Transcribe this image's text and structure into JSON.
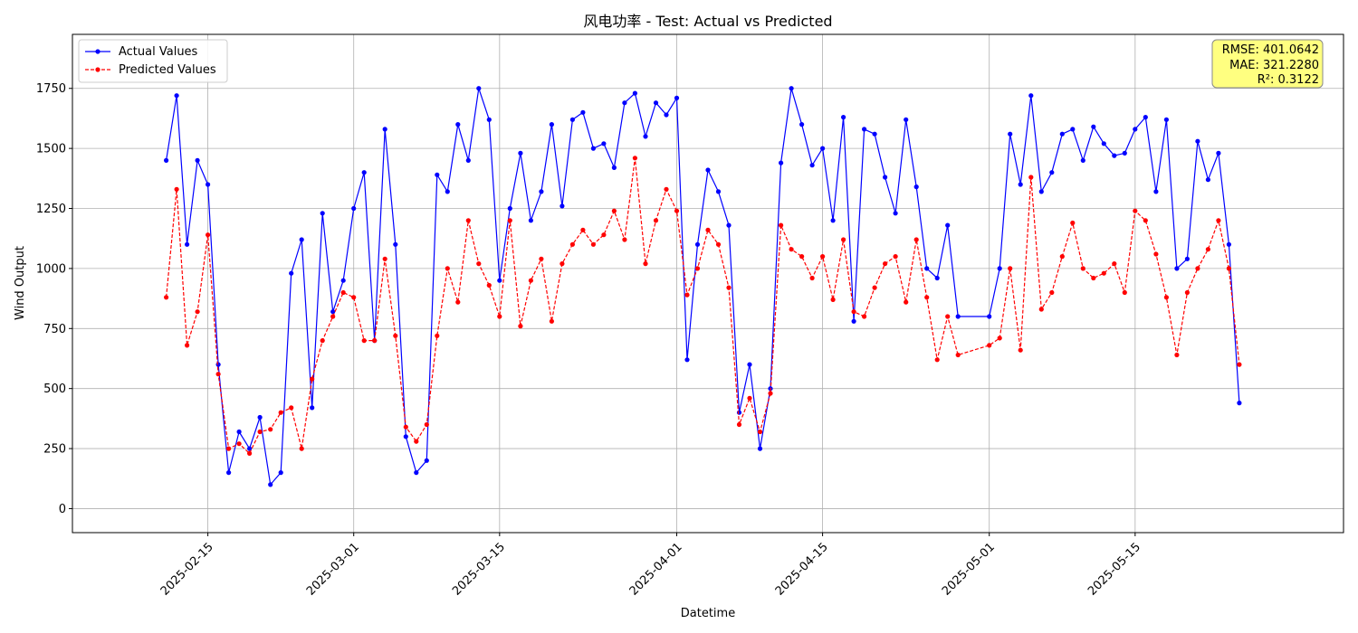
{
  "chart_data": {
    "type": "line",
    "title": "风电功率 - Test: Actual vs Predicted",
    "xlabel": "Datetime",
    "ylabel": "Wind Output",
    "xlim": [
      "2025-02-02",
      "2025-06-04"
    ],
    "ylim": [
      -100,
      1975
    ],
    "grid": true,
    "legend_position": "top-left",
    "x_ticks": [
      "2025-02-15",
      "2025-03-01",
      "2025-03-15",
      "2025-04-01",
      "2025-04-15",
      "2025-05-01",
      "2025-05-15"
    ],
    "y_ticks": [
      0,
      250,
      500,
      750,
      1000,
      1250,
      1500,
      1750
    ],
    "y_tick_labels": [
      "0",
      "250",
      "500",
      "750",
      "1000",
      "1250",
      "1500",
      "1750"
    ],
    "metrics": [
      "RMSE: 401.0642",
      "MAE: 321.2280",
      "R²: 0.3122"
    ],
    "x": [
      "2025-02-11",
      "2025-02-12",
      "2025-02-13",
      "2025-02-14",
      "2025-02-15",
      "2025-02-16",
      "2025-02-17",
      "2025-02-18",
      "2025-02-19",
      "2025-02-20",
      "2025-02-21",
      "2025-02-22",
      "2025-02-23",
      "2025-02-24",
      "2025-02-25",
      "2025-02-26",
      "2025-02-27",
      "2025-02-28",
      "2025-03-01",
      "2025-03-02",
      "2025-03-03",
      "2025-03-04",
      "2025-03-05",
      "2025-03-06",
      "2025-03-07",
      "2025-03-08",
      "2025-03-09",
      "2025-03-10",
      "2025-03-11",
      "2025-03-12",
      "2025-03-13",
      "2025-03-14",
      "2025-03-15",
      "2025-03-16",
      "2025-03-17",
      "2025-03-18",
      "2025-03-19",
      "2025-03-20",
      "2025-03-21",
      "2025-03-22",
      "2025-03-23",
      "2025-03-24",
      "2025-03-25",
      "2025-03-26",
      "2025-03-27",
      "2025-03-28",
      "2025-03-29",
      "2025-03-30",
      "2025-03-31",
      "2025-04-01",
      "2025-04-02",
      "2025-04-03",
      "2025-04-04",
      "2025-04-05",
      "2025-04-06",
      "2025-04-07",
      "2025-04-08",
      "2025-04-09",
      "2025-04-10",
      "2025-04-11",
      "2025-04-12",
      "2025-04-13",
      "2025-04-14",
      "2025-04-15",
      "2025-04-16",
      "2025-04-17",
      "2025-04-18",
      "2025-04-19",
      "2025-04-20",
      "2025-04-21",
      "2025-04-22",
      "2025-04-23",
      "2025-04-24",
      "2025-04-25",
      "2025-04-26",
      "2025-04-27",
      "2025-04-28",
      "2025-05-01",
      "2025-05-02",
      "2025-05-03",
      "2025-05-04",
      "2025-05-05",
      "2025-05-06",
      "2025-05-07",
      "2025-05-08",
      "2025-05-09",
      "2025-05-10",
      "2025-05-11",
      "2025-05-12",
      "2025-05-13",
      "2025-05-14",
      "2025-05-15",
      "2025-05-16",
      "2025-05-17",
      "2025-05-18",
      "2025-05-19",
      "2025-05-20",
      "2025-05-21",
      "2025-05-22",
      "2025-05-23",
      "2025-05-24",
      "2025-05-25"
    ],
    "series": [
      {
        "name": "Actual Values",
        "color": "#0000ff",
        "line_style": "solid",
        "values": [
          1450,
          1720,
          1100,
          1450,
          1350,
          600,
          150,
          320,
          250,
          380,
          100,
          150,
          980,
          1120,
          420,
          1230,
          820,
          950,
          1250,
          1400,
          700,
          1580,
          1100,
          300,
          150,
          200,
          1390,
          1320,
          1600,
          1450,
          1750,
          1620,
          950,
          1250,
          1480,
          1200,
          1320,
          1600,
          1260,
          1620,
          1650,
          1500,
          1520,
          1420,
          1690,
          1730,
          1550,
          1690,
          1640,
          1710,
          620,
          1100,
          1410,
          1320,
          1180,
          400,
          600,
          250,
          500,
          1440,
          1750,
          1600,
          1430,
          1500,
          1200,
          1630,
          780,
          1580,
          1560,
          1380,
          1230,
          1620,
          1340,
          1000,
          960,
          1180,
          800,
          800,
          1000,
          1560,
          1350,
          1720,
          1320,
          1400,
          1560,
          1580,
          1450,
          1590,
          1520,
          1470,
          1480,
          1580,
          1630,
          1320,
          1620,
          1000,
          1040,
          1530,
          1370,
          1480,
          1100,
          440
        ]
      },
      {
        "name": "Predicted Values",
        "color": "#ff0000",
        "line_style": "dashed",
        "values": [
          880,
          1330,
          680,
          820,
          1140,
          560,
          250,
          270,
          230,
          320,
          330,
          400,
          420,
          250,
          540,
          700,
          800,
          900,
          880,
          700,
          700,
          1040,
          720,
          340,
          280,
          350,
          720,
          1000,
          860,
          1200,
          1020,
          930,
          800,
          1200,
          760,
          950,
          1040,
          780,
          1020,
          1100,
          1160,
          1100,
          1140,
          1240,
          1120,
          1460,
          1020,
          1200,
          1330,
          1240,
          890,
          1000,
          1160,
          1100,
          920,
          350,
          460,
          320,
          480,
          1180,
          1080,
          1050,
          960,
          1050,
          870,
          1120,
          820,
          800,
          920,
          1020,
          1050,
          860,
          1120,
          880,
          620,
          800,
          640,
          680,
          710,
          1000,
          660,
          1380,
          830,
          900,
          1050,
          1190,
          1000,
          960,
          980,
          1020,
          900,
          1240,
          1200,
          1060,
          880,
          640,
          900,
          1000,
          1080,
          1200,
          1000,
          600
        ]
      }
    ]
  }
}
